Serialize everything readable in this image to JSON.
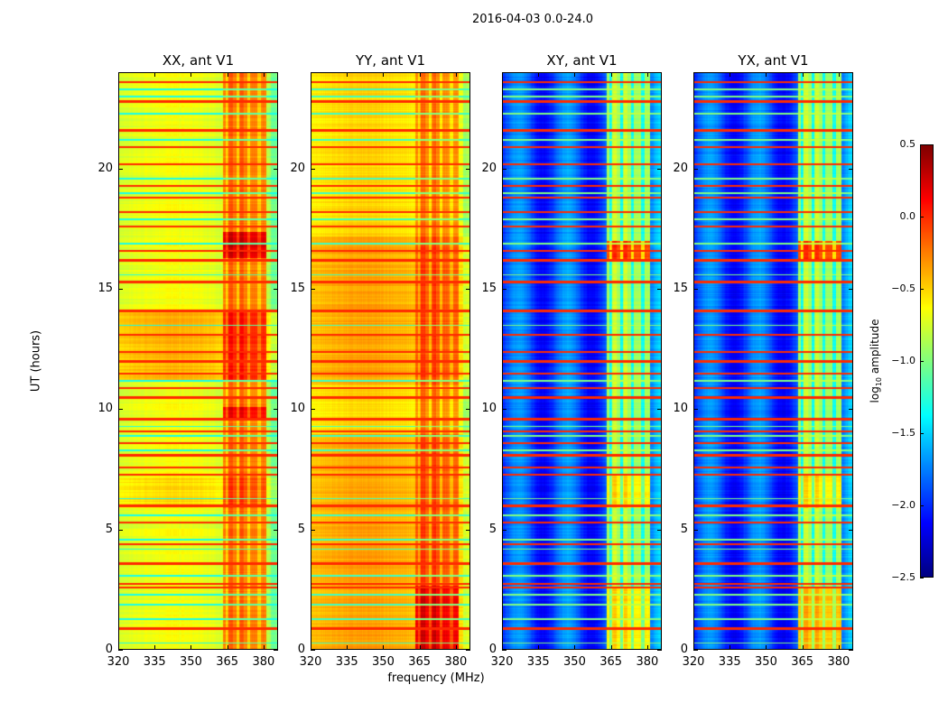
{
  "chart_data": {
    "type": "heatmap",
    "title": "2016-04-03 0.0-24.0",
    "xlabel": "frequency (MHz)",
    "ylabel": "UT (hours)",
    "xlim": [
      320,
      386
    ],
    "ylim": [
      0,
      24
    ],
    "xticks": [
      320,
      335,
      350,
      365,
      380
    ],
    "yticks": [
      0,
      5,
      10,
      15,
      20
    ],
    "colorbar": {
      "label_prefix": "log",
      "label_sub": "10",
      "label_suffix": " amplitude",
      "range": [
        -2.5,
        0.5
      ],
      "ticks": [
        "0.5",
        "0.0",
        "−0.5",
        "−1.0",
        "−1.5",
        "−2.0",
        "−2.5"
      ],
      "tick_values": [
        0.5,
        0,
        -0.5,
        -1,
        -1.5,
        -2,
        -2.5
      ],
      "colormap": "jet"
    },
    "rfi_band_mhz": [
      363,
      381
    ],
    "red_rfi_hours": [
      0.9,
      2.6,
      2.75,
      3.6,
      4.4,
      5.3,
      6.0,
      7.3,
      7.6,
      8.1,
      8.6,
      9.1,
      9.6,
      10.5,
      10.9,
      11.5,
      12.0,
      12.4,
      13.1,
      14.1,
      15.3,
      16.2,
      16.6,
      17.6,
      18.2,
      18.8,
      19.3,
      20.2,
      20.9,
      21.6,
      22.8,
      23.6
    ],
    "cyan_rfi_hours": [
      0.3,
      1.3,
      1.9,
      2.3,
      3.1,
      4.2,
      4.6,
      5.6,
      6.3,
      8.3,
      8.9,
      9.3,
      11.2,
      13.5,
      15.6,
      16.9,
      17.9,
      19.0,
      19.6,
      21.2,
      22.3,
      23.0,
      23.3
    ],
    "panels": [
      {
        "title": "XX, ant V1",
        "base": -0.75,
        "band": -0.25,
        "rfi_red": 0.0,
        "rfi_cyan": -1.3,
        "segments": [
          {
            "from": 5.9,
            "to": 7.2,
            "delta": 0.15
          },
          {
            "from": 11.2,
            "to": 14.1,
            "delta": 0.25
          },
          {
            "from": 16.3,
            "to": 17.4,
            "delta": 0.45,
            "band_only": true
          },
          {
            "from": 9.6,
            "to": 10.1,
            "delta": 0.35,
            "band_only": true
          }
        ]
      },
      {
        "title": "YY, ant V1",
        "base": -0.45,
        "band": -0.15,
        "rfi_red": 0.0,
        "rfi_cyan": -1.2,
        "segments": [
          {
            "from": 9.0,
            "to": 24,
            "delta": -0.15
          },
          {
            "from": 11.0,
            "to": 17.2,
            "delta": 0.15
          },
          {
            "from": 0,
            "to": 2.7,
            "delta": 0.3,
            "band_only": true
          }
        ]
      },
      {
        "title": "XY, ant V1",
        "base": -1.9,
        "band": -0.9,
        "rfi_red": 0.0,
        "rfi_cyan": -1.0,
        "segments": [
          {
            "from": 16.2,
            "to": 17.0,
            "delta": 0.8,
            "band_only": true
          },
          {
            "from": 5.9,
            "to": 7.3,
            "delta": 0.3,
            "band_only": true
          },
          {
            "from": 0,
            "to": 2.6,
            "delta": 0.3,
            "band_only": true
          }
        ]
      },
      {
        "title": "YX, ant V1",
        "base": -1.9,
        "band": -0.9,
        "rfi_red": 0.0,
        "rfi_cyan": -1.0,
        "segments": [
          {
            "from": 16.2,
            "to": 17.0,
            "delta": 0.8,
            "band_only": true
          },
          {
            "from": 5.9,
            "to": 7.3,
            "delta": 0.3,
            "band_only": true
          },
          {
            "from": 0,
            "to": 2.6,
            "delta": 0.45,
            "band_only": true
          }
        ]
      }
    ]
  }
}
